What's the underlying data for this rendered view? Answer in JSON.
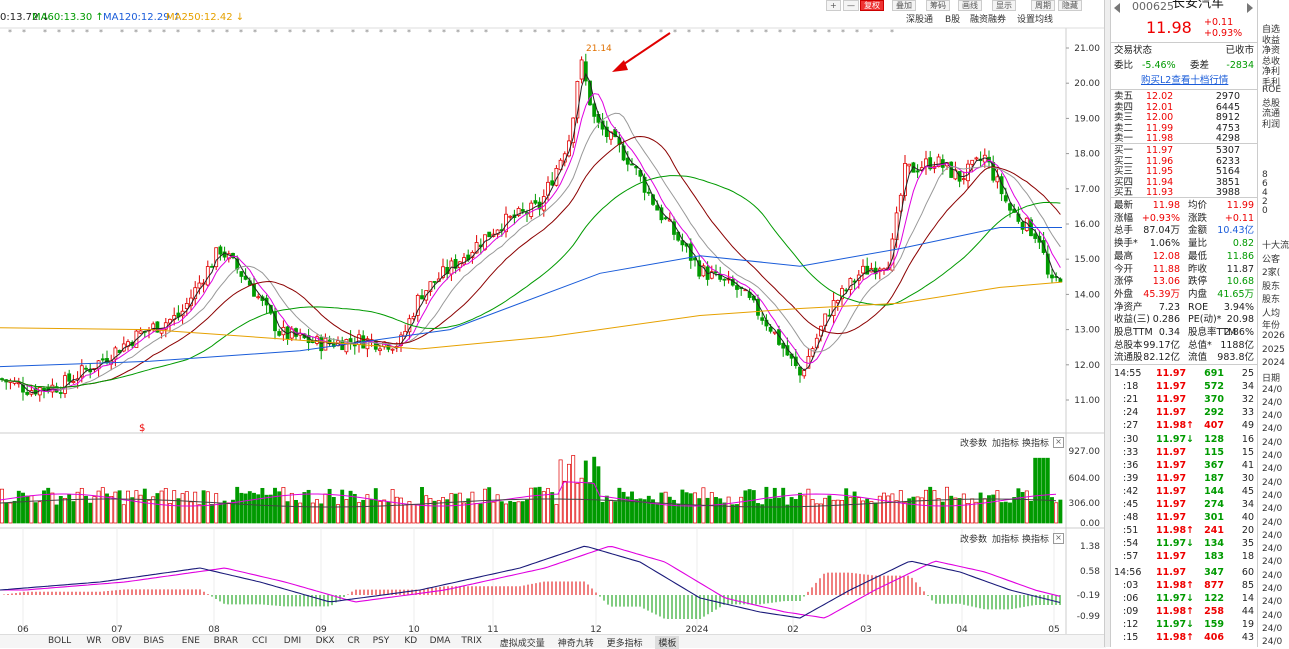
{
  "ma_labels": [
    {
      "text": "0:13.72 ↓",
      "color": "#222222"
    },
    {
      "text": "MA60:13.30 ↑",
      "color": "#009a00"
    },
    {
      "text": "MA120:12.29 ↑",
      "color": "#1a5cd9"
    },
    {
      "text": "MA250:12.42 ↓",
      "color": "#e6a100"
    }
  ],
  "toolbar": {
    "buttons": [
      "+",
      "—",
      "复权",
      "叠加",
      "筹码",
      "画线",
      "显示",
      "周期",
      "隐藏"
    ],
    "active": "复权",
    "tools": [
      "深股通",
      "B股",
      "融资融券",
      "设置均线"
    ]
  },
  "main_axis": [
    "21.00",
    "20.00",
    "19.00",
    "18.00",
    "17.00",
    "16.00",
    "15.00",
    "14.00",
    "13.00",
    "12.00",
    "11.00"
  ],
  "peak_label": "21.14",
  "dollar_marker": "$",
  "vol_axis": [
    "927.00",
    "604.00",
    "306.00",
    "0.00"
  ],
  "macd_axis": [
    "1.38",
    "0.58",
    "-0.19",
    "-0.99"
  ],
  "panel_tools": [
    "改参数",
    "加指标",
    "换指标"
  ],
  "x_labels": [
    "06",
    "07",
    "08",
    "09",
    "10",
    "11",
    "12",
    "2024",
    "02",
    "03",
    "04",
    "05"
  ],
  "bottom_tabs": [
    "BOLL",
    "WR",
    "OBV",
    "BIAS",
    "ENE",
    "BRAR",
    "CCI",
    "DMI",
    "DKX",
    "CR",
    "PSY",
    "KD",
    "DMA",
    "TRIX",
    "虚拟成交量",
    "神奇九转",
    "更多指标",
    "模板"
  ],
  "quote": {
    "code": "000625",
    "name": "长安汽车",
    "price": "11.98",
    "change": "+0.11",
    "change_pct": "+0.93%",
    "status_label": "交易状态",
    "status": "已收市",
    "webi_label": "委比",
    "webi": "-5.46%",
    "weicha_label": "委差",
    "weicha": "-2834",
    "l2_link": "购买L2查看十档行情",
    "asks": [
      [
        "卖五",
        "12.02",
        "2970"
      ],
      [
        "卖四",
        "12.01",
        "6445"
      ],
      [
        "卖三",
        "12.00",
        "8912"
      ],
      [
        "卖二",
        "11.99",
        "4753"
      ],
      [
        "卖一",
        "11.98",
        "4298"
      ]
    ],
    "bids": [
      [
        "买一",
        "11.97",
        "5307"
      ],
      [
        "买二",
        "11.96",
        "6233"
      ],
      [
        "买三",
        "11.95",
        "5164"
      ],
      [
        "买四",
        "11.94",
        "3851"
      ],
      [
        "买五",
        "11.93",
        "3988"
      ]
    ],
    "stats": [
      [
        "最新",
        "11.98",
        "red",
        "均价",
        "11.99",
        "red"
      ],
      [
        "涨幅",
        "+0.93%",
        "red",
        "涨跌",
        "+0.11",
        "red"
      ],
      [
        "总手",
        "87.04万",
        "",
        "金额",
        "10.43亿",
        "blue"
      ],
      [
        "换手*",
        "1.06%",
        "",
        "量比",
        "0.82",
        "green"
      ],
      [
        "最高",
        "12.08",
        "red",
        "最低",
        "11.86",
        "green"
      ],
      [
        "今开",
        "11.88",
        "red",
        "昨收",
        "11.87",
        ""
      ],
      [
        "涨停",
        "13.06",
        "red",
        "跌停",
        "10.68",
        "green"
      ],
      [
        "外盘",
        "45.39万",
        "red",
        "内盘",
        "41.65万",
        "green"
      ],
      [
        "净资产",
        "7.23",
        "",
        "ROE",
        "3.94%",
        ""
      ],
      [
        "收益(三)",
        "0.286",
        "",
        "PE(动)*",
        "20.98",
        ""
      ],
      [
        "股息TTM",
        "0.34",
        "",
        "股息率TTM",
        "2.86%",
        ""
      ],
      [
        "总股本",
        "99.17亿",
        "",
        "总值*",
        "1188亿",
        ""
      ],
      [
        "流通股",
        "82.12亿",
        "",
        "流值",
        "983.8亿",
        ""
      ]
    ],
    "ticks": [
      [
        "14:55",
        "11.97",
        "691",
        "25",
        "green",
        ""
      ],
      [
        ":18",
        "11.97",
        "572",
        "34",
        "green",
        ""
      ],
      [
        ":21",
        "11.97",
        "370",
        "32",
        "green",
        ""
      ],
      [
        ":24",
        "11.97",
        "292",
        "33",
        "green",
        ""
      ],
      [
        ":27",
        "11.98↑",
        "407",
        "49",
        "red",
        "red"
      ],
      [
        ":30",
        "11.97↓",
        "128",
        "16",
        "green",
        "green"
      ],
      [
        ":33",
        "11.97",
        "115",
        "15",
        "green",
        ""
      ],
      [
        ":36",
        "11.97",
        "367",
        "41",
        "green",
        ""
      ],
      [
        ":39",
        "11.97",
        "187",
        "30",
        "green",
        ""
      ],
      [
        ":42",
        "11.97",
        "144",
        "45",
        "green",
        ""
      ],
      [
        ":45",
        "11.97",
        "274",
        "34",
        "green",
        ""
      ],
      [
        ":48",
        "11.97",
        "301",
        "40",
        "green",
        ""
      ],
      [
        ":51",
        "11.98↑",
        "241",
        "20",
        "red",
        "red"
      ],
      [
        ":54",
        "11.97↓",
        "134",
        "35",
        "green",
        "green"
      ],
      [
        ":57",
        "11.97",
        "183",
        "18",
        "green",
        ""
      ],
      [
        "14:56",
        "11.97",
        "347",
        "60",
        "green",
        ""
      ],
      [
        ":03",
        "11.98↑",
        "877",
        "85",
        "red",
        "red"
      ],
      [
        ":06",
        "11.97↓",
        "122",
        "14",
        "green",
        "green"
      ],
      [
        ":09",
        "11.98↑",
        "258",
        "44",
        "red",
        "red"
      ],
      [
        ":12",
        "11.97↓",
        "159",
        "19",
        "green",
        "green"
      ],
      [
        ":15",
        "11.98↑",
        "406",
        "43",
        "red",
        "red"
      ]
    ]
  },
  "edge_panel": [
    "自选",
    "收益",
    "净资",
    "总收",
    "净利",
    "毛利",
    "ROE",
    "总股",
    "流通",
    "利润",
    "8",
    "6",
    "4",
    "2",
    "0",
    "十大流",
    "公客",
    "2家(",
    "股东",
    "股东",
    "人均",
    "年份",
    "2026",
    "2025",
    "2024",
    "日期",
    "24/0",
    "24/0",
    "24/0",
    "24/0",
    "24/0",
    "24/0",
    "24/0",
    "24/0",
    "24/0",
    "24/0",
    "24/0",
    "24/0",
    "24/0",
    "24/0",
    "24/0",
    "24/0",
    "24/0",
    "24/0",
    "24/0",
    "24/0"
  ],
  "colors": {
    "up": "#e00000",
    "down": "#009a00",
    "ma5": "#222222",
    "ma10": "#e000e0",
    "ma20": "#999999",
    "ma30": "#8b0000",
    "ma60": "#009a00",
    "ma120": "#1a5cd9",
    "ma250": "#e6a100",
    "arrow": "#e00000"
  }
}
